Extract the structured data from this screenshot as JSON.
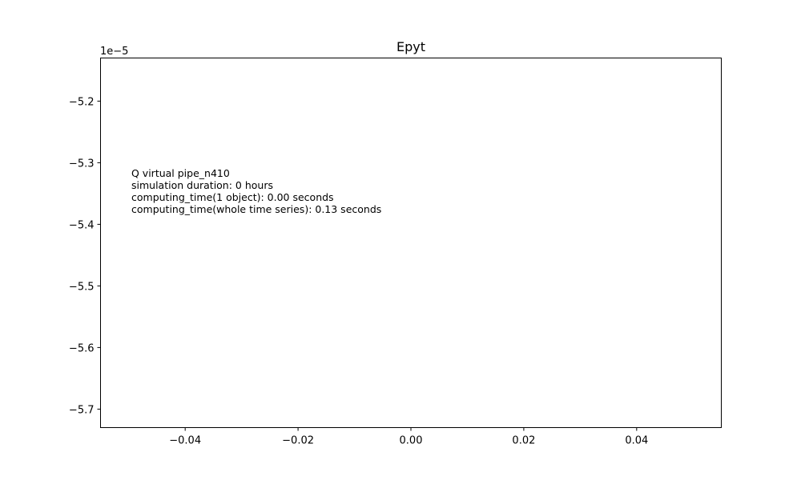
{
  "chart_data": {
    "type": "line",
    "title": "Epyt",
    "xlabel": "",
    "ylabel": "",
    "xlim": [
      -0.055,
      0.055
    ],
    "ylim": [
      -5.73e-05,
      -5.13e-05
    ],
    "x_ticks": [
      -0.04,
      -0.02,
      0.0,
      0.02,
      0.04
    ],
    "x_tick_labels": [
      "−0.04",
      "−0.02",
      "0.00",
      "0.02",
      "0.04"
    ],
    "y_ticks": [
      -5.2e-05,
      -5.3e-05,
      -5.4e-05,
      -5.5e-05,
      -5.6e-05,
      -5.7e-05
    ],
    "y_tick_labels": [
      "−5.2",
      "−5.3",
      "−5.4",
      "−5.5",
      "−5.6",
      "−5.7"
    ],
    "y_offset_label": "1e−5",
    "grid": false,
    "series": [],
    "annotation": [
      "Q virtual pipe_n410",
      "simulation duration:  0 hours",
      "computing_time(1 object):  0.00 seconds",
      "computing_time(whole time series):  0.13 seconds"
    ]
  }
}
